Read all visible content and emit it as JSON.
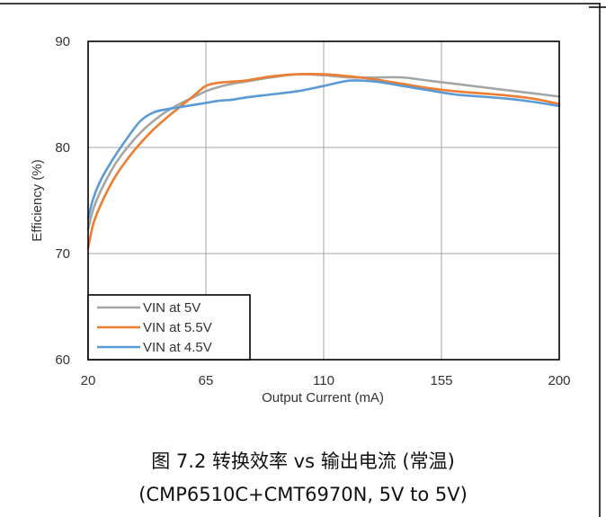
{
  "caption": {
    "line1": "图 7.2 转换效率 vs 输出电流 (常温)",
    "line2": "(CMP6510C+CMT6970N, 5V to 5V)"
  },
  "chart_data": {
    "type": "line",
    "title": "",
    "xlabel": "Output Current (mA)",
    "ylabel": "Efficiency (%)",
    "xlim": [
      20,
      200
    ],
    "ylim": [
      60,
      90
    ],
    "xticks": [
      20,
      65,
      110,
      155,
      200
    ],
    "yticks": [
      60,
      70,
      80,
      90
    ],
    "grid": true,
    "legend_placement": "bottom-left",
    "series": [
      {
        "name": "VIN at 5V",
        "color": "#a5a5a5",
        "x": [
          20,
          22,
          25,
          30,
          35,
          40,
          45,
          50,
          55,
          60,
          65,
          70,
          75,
          80,
          90,
          100,
          110,
          120,
          130,
          140,
          150,
          160,
          170,
          180,
          190,
          200
        ],
        "y": [
          72.3,
          74.2,
          76.0,
          78.3,
          80.0,
          81.4,
          82.5,
          83.4,
          84.1,
          84.7,
          85.3,
          85.7,
          86.0,
          86.2,
          86.6,
          86.9,
          86.8,
          86.6,
          86.6,
          86.6,
          86.3,
          86.0,
          85.7,
          85.4,
          85.1,
          84.8
        ]
      },
      {
        "name": "VIN at 5.5V",
        "color": "#ed7d31",
        "x": [
          20,
          22,
          25,
          30,
          35,
          40,
          45,
          50,
          55,
          60,
          65,
          70,
          75,
          80,
          90,
          100,
          110,
          120,
          130,
          140,
          150,
          160,
          170,
          180,
          190,
          200
        ],
        "y": [
          70.5,
          72.8,
          74.7,
          77.1,
          78.9,
          80.4,
          81.7,
          82.8,
          83.8,
          84.8,
          85.8,
          86.1,
          86.2,
          86.3,
          86.7,
          86.9,
          86.9,
          86.7,
          86.4,
          86.0,
          85.6,
          85.3,
          85.1,
          84.9,
          84.6,
          84.1
        ]
      },
      {
        "name": "VIN at 4.5V",
        "color": "#5b9bd5",
        "x": [
          20,
          22,
          25,
          30,
          35,
          40,
          45,
          50,
          55,
          60,
          65,
          70,
          75,
          80,
          90,
          100,
          110,
          120,
          130,
          140,
          150,
          160,
          170,
          180,
          190,
          200
        ],
        "y": [
          73.3,
          75.2,
          77.0,
          79.1,
          80.9,
          82.5,
          83.3,
          83.6,
          83.8,
          84.0,
          84.2,
          84.4,
          84.5,
          84.7,
          85.0,
          85.3,
          85.8,
          86.3,
          86.2,
          85.8,
          85.4,
          85.0,
          84.8,
          84.6,
          84.3,
          83.9
        ]
      }
    ]
  }
}
